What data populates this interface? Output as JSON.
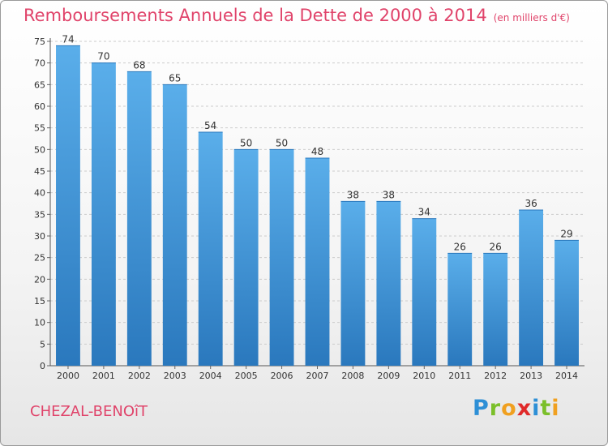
{
  "header": {
    "title": "Remboursements Annuels de la Dette de 2000 à 2014",
    "unit": "(en milliers d'€)"
  },
  "footer": {
    "commune": "CHEZAL-BENOîT",
    "brand_letters": [
      {
        "ch": "P",
        "color": "#2d8fd6"
      },
      {
        "ch": "r",
        "color": "#7bbf2a"
      },
      {
        "ch": "o",
        "color": "#f0a020"
      },
      {
        "ch": "x",
        "color": "#e02a2a"
      },
      {
        "ch": "i",
        "color": "#2d8fd6"
      },
      {
        "ch": "t",
        "color": "#7bbf2a"
      },
      {
        "ch": "i",
        "color": "#f0a020"
      }
    ]
  },
  "chart_data": {
    "type": "bar",
    "title": "Remboursements Annuels de la Dette de 2000 à 2014",
    "categories": [
      "2000",
      "2001",
      "2002",
      "2003",
      "2004",
      "2005",
      "2006",
      "2007",
      "2008",
      "2009",
      "2010",
      "2011",
      "2012",
      "2013",
      "2014"
    ],
    "values": [
      74,
      70,
      68,
      65,
      54,
      50,
      50,
      48,
      38,
      38,
      34,
      26,
      26,
      36,
      29
    ],
    "ylim": [
      0,
      75
    ],
    "yticks": [
      0,
      5,
      10,
      15,
      20,
      25,
      30,
      35,
      40,
      45,
      50,
      55,
      60,
      65,
      70,
      75
    ],
    "grid": true,
    "bar_color_top": "#5aaeea",
    "bar_color_bottom": "#2a78bd"
  }
}
